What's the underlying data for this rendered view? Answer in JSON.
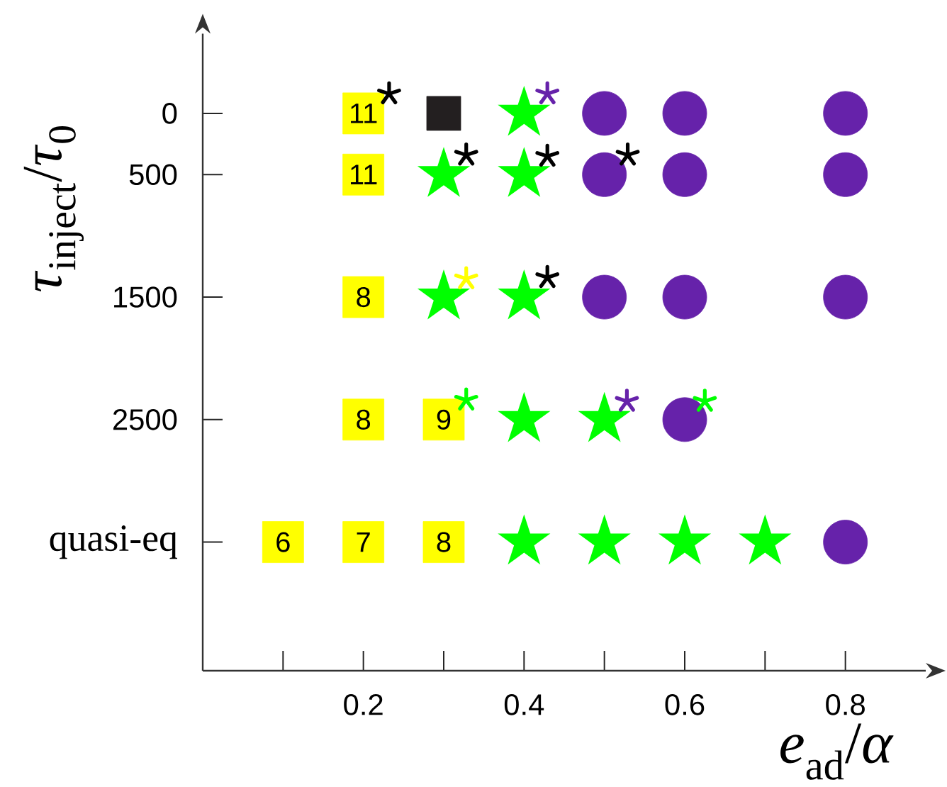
{
  "chart_data": {
    "type": "scatter",
    "xlabel": "*e*$_{ad}$/*α*",
    "ylabel": "*τ*$_{inject}$/*τ*$_{0}$",
    "xlim": [
      0,
      0.9
    ],
    "ylim": [
      4550,
      -650
    ],
    "xticks": [
      {
        "value": 0.1,
        "label": null
      },
      0.2,
      {
        "value": 0.3,
        "label": null
      },
      0.4,
      {
        "value": 0.5,
        "label": null
      },
      0.6,
      {
        "value": 0.7,
        "label": null
      },
      0.8
    ],
    "yticks": [
      0,
      500,
      1500,
      2500,
      {
        "value": 3500,
        "label": "quasi-eq"
      }
    ],
    "series": [
      {
        "marker": "square",
        "color": "#ffff00",
        "x": [
          0.2,
          0.2,
          0.2,
          0.2,
          0.3,
          0.1,
          0.2,
          0.3
        ],
        "values": [
          0,
          500,
          1500,
          2500,
          2500,
          3500,
          3500,
          3500
        ]
      },
      {
        "marker": "square",
        "color": "#231f20",
        "x": [
          0.3
        ],
        "values": [
          0
        ]
      },
      {
        "marker": "star",
        "color": "#00ff00",
        "x": [
          0.4,
          0.3,
          0.4,
          0.3,
          0.4,
          0.4,
          0.5,
          0.4,
          0.5,
          0.6,
          0.7
        ],
        "values": [
          0,
          500,
          500,
          1500,
          1500,
          2500,
          2500,
          3500,
          3500,
          3500,
          3500
        ]
      },
      {
        "marker": "circle",
        "color": "#6622aa",
        "x": [
          0.5,
          0.6,
          0.8,
          0.5,
          0.6,
          0.8,
          0.5,
          0.6,
          0.8,
          0.6,
          0.8
        ],
        "values": [
          0,
          0,
          0,
          500,
          500,
          500,
          1500,
          1500,
          1500,
          2500,
          3500
        ]
      },
      {
        "marker": "cross",
        "color": "#000000",
        "x": [
          0.232,
          0.328,
          0.429,
          0.529,
          0.429
        ],
        "values": [
          -160,
          340,
          350,
          340,
          1340
        ]
      },
      {
        "marker": "cross",
        "color": "#6622aa",
        "x": [
          0.429,
          0.528
        ],
        "values": [
          -160,
          2350
        ]
      },
      {
        "marker": "cross",
        "color": "#ffff00",
        "x": [
          0.328
        ],
        "values": [
          1350
        ]
      },
      {
        "marker": "cross",
        "color": "#00ff00",
        "x": [
          0.328,
          0.625
        ],
        "values": [
          2340,
          2350
        ]
      }
    ],
    "annotations": [
      {
        "text": "11",
        "x": 0.2,
        "y": 0
      },
      {
        "text": "11",
        "x": 0.2,
        "y": 500
      },
      {
        "text": "8",
        "x": 0.2,
        "y": 1500
      },
      {
        "text": "8",
        "x": 0.2,
        "y": 2500
      },
      {
        "text": "9",
        "x": 0.3,
        "y": 2500
      },
      {
        "text": "6",
        "x": 0.1,
        "y": 3500
      },
      {
        "text": "7",
        "x": 0.2,
        "y": 3500
      },
      {
        "text": "8",
        "x": 0.3,
        "y": 3500
      }
    ]
  }
}
